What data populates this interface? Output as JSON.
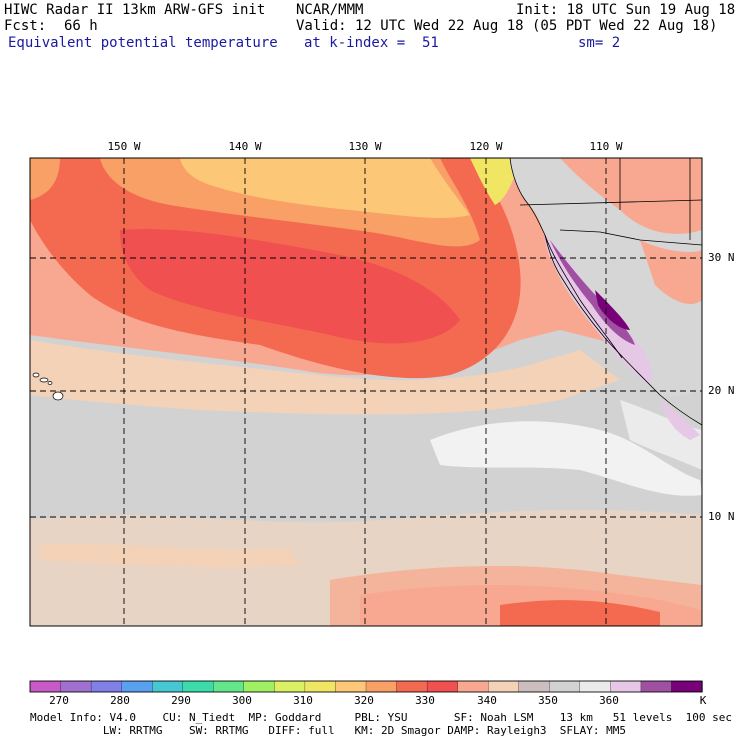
{
  "header": {
    "title": "HIWC Radar II 13km ARW-GFS init",
    "org": "NCAR/MMM",
    "init": "Init: 18 UTC Sun 19 Aug 18",
    "fcst_label": "Fcst:",
    "fcst_value": "66 h",
    "valid": "Valid: 12 UTC Wed 22 Aug 18 (05 PDT Wed 22 Aug 18)",
    "field": "Equivalent potential temperature",
    "level": "at k-index =  51",
    "smoothing": "sm= 2"
  },
  "map": {
    "lon_labels": [
      "150 W",
      "140 W",
      "130 W",
      "120 W",
      "110 W"
    ],
    "lat_labels": [
      "30 N",
      "20 N",
      "10 N"
    ],
    "grid_lines": "dashed"
  },
  "colorbar": {
    "unit": "K",
    "tick_labels": [
      "270",
      "280",
      "290",
      "300",
      "310",
      "320",
      "330",
      "340",
      "350",
      "360"
    ],
    "colors": [
      "#c85ac8",
      "#a070d0",
      "#8080e6",
      "#5aa0f0",
      "#46c8d2",
      "#3cdcaa",
      "#64e68c",
      "#a0f064",
      "#dcf064",
      "#f0e664",
      "#fcc878",
      "#f8a066",
      "#f46a50",
      "#f05050",
      "#f8a890",
      "#f4d2b8",
      "#ccbebe",
      "#d2d2d2",
      "#ebebeb",
      "#e6c8e6",
      "#a050a0",
      "#780078"
    ]
  },
  "footer": {
    "line1": "Model Info: V4.0    CU: N_Tiedt  MP: Goddard     PBL: YSU       SF: Noah LSM    13 km   51 levels  100 sec",
    "line2": "           LW: RRTMG    SW: RRTMG   DIFF: full   KM: 2D Smagor DAMP: Rayleigh3  SFLAY: MM5"
  }
}
